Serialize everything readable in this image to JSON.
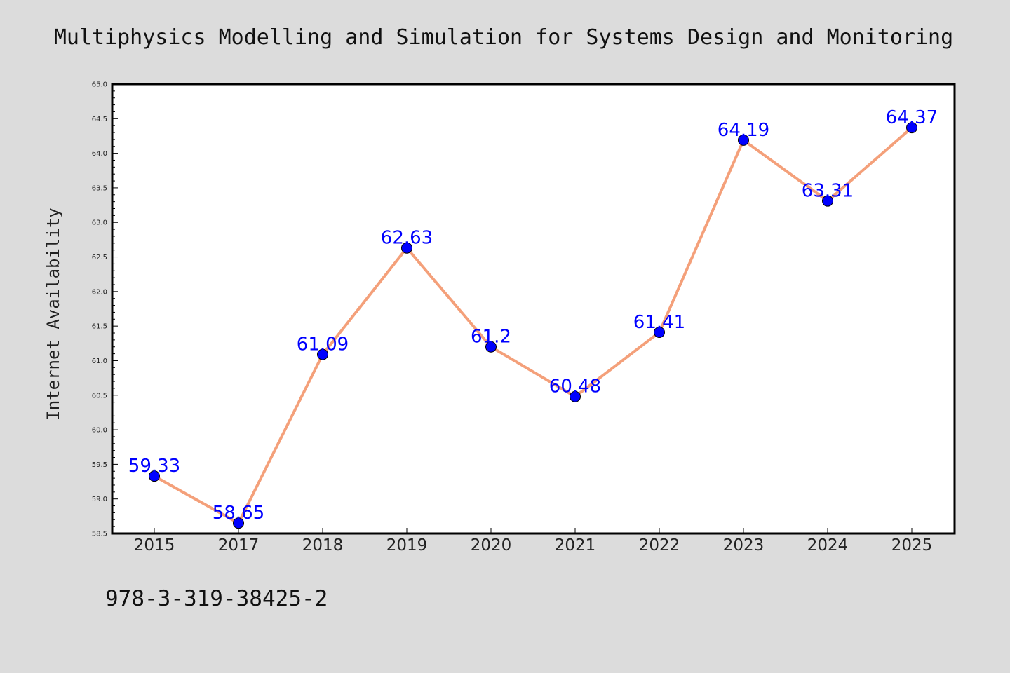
{
  "chart_data": {
    "type": "line",
    "title": "Multiphysics Modelling and Simulation for Systems Design and Monitoring",
    "xlabel": "",
    "ylabel": "Internet Availability",
    "categories": [
      "2015",
      "2017",
      "2018",
      "2019",
      "2020",
      "2021",
      "2022",
      "2023",
      "2024",
      "2025"
    ],
    "series": [
      {
        "values": [
          59.33,
          58.65,
          61.09,
          62.63,
          61.2,
          60.48,
          61.41,
          64.19,
          63.31,
          64.37
        ],
        "data_labels": [
          "59.33",
          "58.65",
          "61.09",
          "62.63",
          "61.2",
          "60.48",
          "61.41",
          "64.19",
          "63.31",
          "64.37"
        ]
      }
    ],
    "ylim": [
      58.5,
      65.0
    ],
    "yticks": [
      "58.5",
      "59.0",
      "59.5",
      "60.0",
      "60.5",
      "61.0",
      "61.5",
      "62.0",
      "62.5",
      "63.0",
      "63.5",
      "64.0",
      "64.5",
      "65.0"
    ],
    "grid": false,
    "legend": "none",
    "colors": {
      "line": "#f4a07a",
      "marker": "#0000ff",
      "data_label": "#0000ff",
      "plot_background": "#ffffff",
      "page_background": "#dcdcdc"
    }
  },
  "footer": {
    "isbn": "978-3-319-38425-2"
  }
}
